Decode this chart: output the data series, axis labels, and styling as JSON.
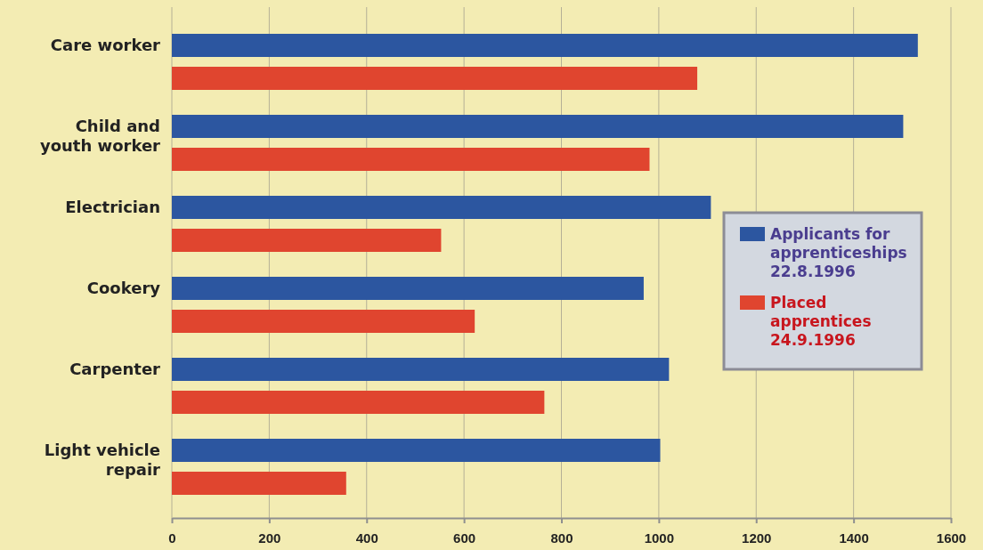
{
  "chart_data": {
    "type": "bar",
    "orientation": "horizontal",
    "categories": [
      "Care worker",
      "Child and youth worker",
      "Electrician",
      "Cookery",
      "Carpenter",
      "Light vehicle repair"
    ],
    "series": [
      {
        "name": "Applicants for apprenticeships 22.8.1996",
        "color": "#2c56a0",
        "values": [
          1532,
          1502,
          1107,
          969,
          1021,
          1003
        ]
      },
      {
        "name": "Placed apprentices 24.9.1996",
        "color": "#e0452f",
        "values": [
          1079,
          981,
          553,
          622,
          765,
          358
        ]
      }
    ],
    "xlim": [
      0,
      1600
    ],
    "xticks": [
      0,
      200,
      400,
      600,
      800,
      1000,
      1200,
      1400,
      1600
    ],
    "grid": "x",
    "legend": "right"
  }
}
